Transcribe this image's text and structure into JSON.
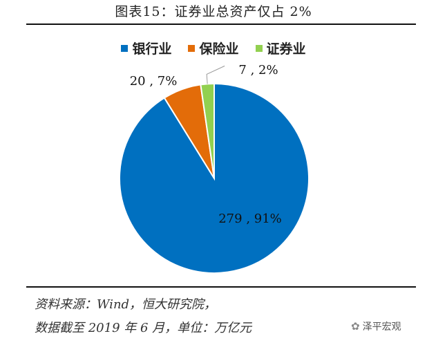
{
  "header": {
    "title": "图表15：证券业总资产仅占 2%"
  },
  "chart_data": {
    "type": "pie",
    "title": "图表15：证券业总资产仅占 2%",
    "legend_position": "top",
    "slices": [
      {
        "name": "银行业",
        "value": 279,
        "percent": "91%",
        "label": "279 , 91%",
        "color": "#0070C0"
      },
      {
        "name": "保险业",
        "value": 20,
        "percent": "7%",
        "label": "20 , 7%",
        "color": "#E36C09"
      },
      {
        "name": "证券业",
        "value": 7,
        "percent": "2%",
        "label": "7 , 2%",
        "color": "#92D050"
      }
    ]
  },
  "footer": {
    "source_line1": "资料来源：Wind，恒大研究院，",
    "source_line2": "数据截至 2019 年 6 月，单位：万亿元",
    "watermark": "泽平宏观",
    "watermark_icon": "wechat-icon"
  }
}
